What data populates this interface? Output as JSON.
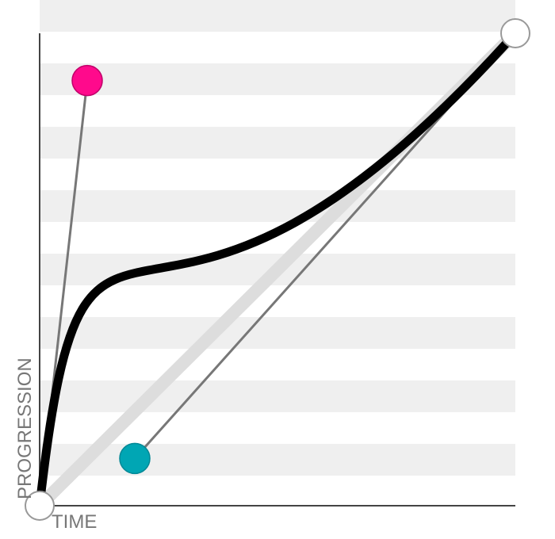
{
  "axes": {
    "x_label": "TIME",
    "y_label": "PROGRESSION"
  },
  "curve": {
    "type": "cubic-bezier",
    "p0": [
      0,
      0
    ],
    "p1": [
      0.1,
      0.9
    ],
    "p2": [
      0.2,
      0.1
    ],
    "p3": [
      1,
      1
    ]
  },
  "colors": {
    "background": "#ffffff",
    "stripe": "#efefef",
    "axis": "#444444",
    "curve": "#000000",
    "linear_reference": "#dddddd",
    "handle_line": "#777777",
    "p1_handle": "#ff0a8c",
    "p2_handle": "#00a6b4",
    "endpoint": "#ffffff",
    "endpoint_stroke": "#999999"
  },
  "icons": {
    "p1_handle": "circle-handle-magenta",
    "p2_handle": "circle-handle-teal",
    "start_point": "circle-endpoint",
    "end_point": "circle-endpoint"
  }
}
